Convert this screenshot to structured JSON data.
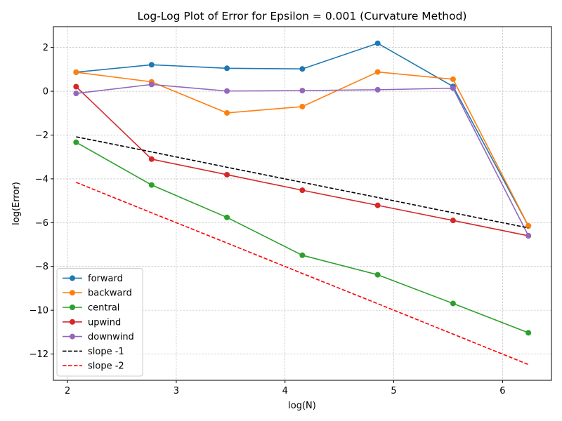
{
  "chart_data": {
    "type": "line",
    "title": "Log-Log Plot of Error for Epsilon = 0.001 (Curvature Method)",
    "xlabel": "log(N)",
    "ylabel": "log(Error)",
    "xlim": [
      1.87,
      6.45
    ],
    "ylim": [
      -13.2,
      2.95
    ],
    "xticks": [
      2,
      3,
      4,
      5,
      6
    ],
    "yticks": [
      -12,
      -10,
      -8,
      -6,
      -4,
      -2,
      0,
      2
    ],
    "grid": true,
    "legend_position": "lower-left",
    "x": [
      2.079,
      2.773,
      3.466,
      4.159,
      4.852,
      5.545,
      6.238
    ],
    "series": [
      {
        "name": "forward",
        "color": "#1f77b4",
        "style": "solid-marker",
        "values": [
          0.87,
          1.21,
          1.05,
          1.02,
          2.19,
          0.22,
          -6.15
        ]
      },
      {
        "name": "backward",
        "color": "#ff7f0e",
        "style": "solid-marker",
        "values": [
          0.87,
          0.43,
          -0.99,
          -0.7,
          0.88,
          0.55,
          -6.15
        ]
      },
      {
        "name": "central",
        "color": "#2ca02c",
        "style": "solid-marker",
        "values": [
          -2.33,
          -4.28,
          -5.76,
          -7.49,
          -8.38,
          -9.69,
          -11.03
        ]
      },
      {
        "name": "upwind",
        "color": "#d62728",
        "style": "solid-marker",
        "values": [
          0.21,
          -3.1,
          -3.81,
          -4.52,
          -5.21,
          -5.9,
          -6.6
        ]
      },
      {
        "name": "downwind",
        "color": "#9467bd",
        "style": "solid-marker",
        "values": [
          -0.1,
          0.31,
          0.01,
          0.03,
          0.07,
          0.14,
          -6.6
        ]
      },
      {
        "name": "slope -1",
        "color": "#000000",
        "style": "dashed",
        "values": [
          -2.08,
          -2.77,
          -3.47,
          -4.16,
          -4.85,
          -5.55,
          -6.24
        ]
      },
      {
        "name": "slope -2",
        "color": "#ff0000",
        "style": "dashed",
        "values": [
          -4.16,
          -5.55,
          -6.93,
          -8.32,
          -9.7,
          -11.09,
          -12.48
        ]
      }
    ]
  }
}
